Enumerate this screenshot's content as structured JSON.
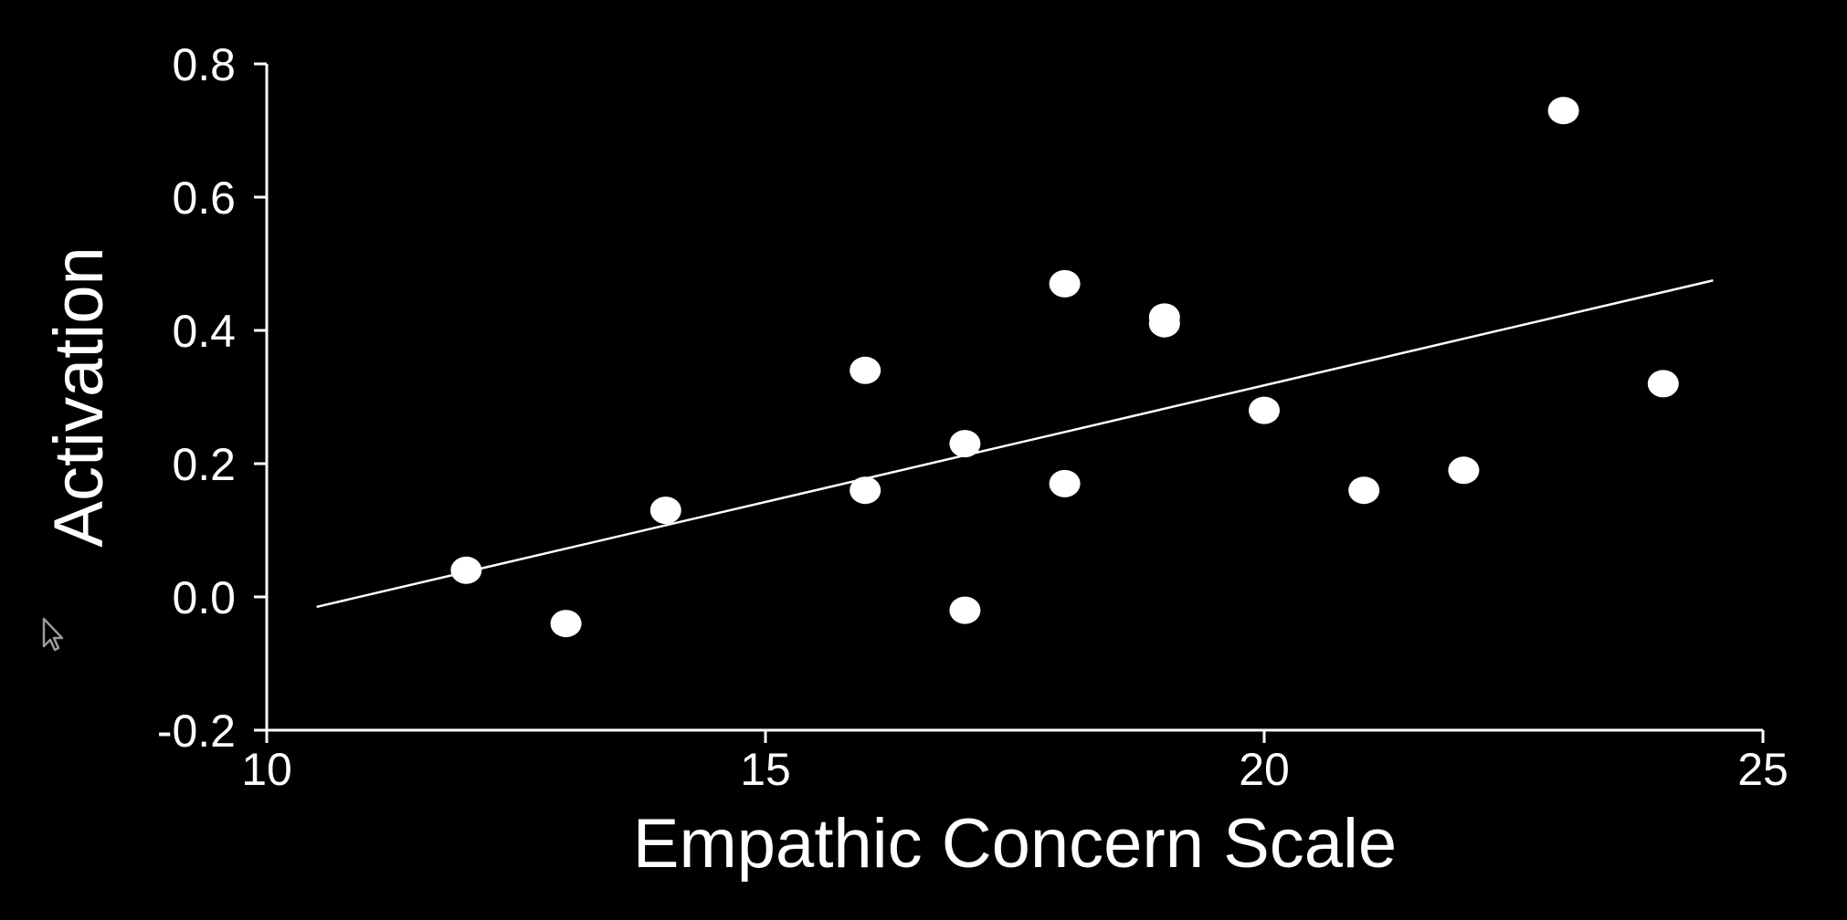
{
  "chart_data": {
    "type": "scatter",
    "xlabel": "Empathic Concern Scale",
    "ylabel": "Activation",
    "xlim": [
      10,
      25
    ],
    "ylim": [
      -0.2,
      0.8
    ],
    "x_ticks": [
      "10",
      "15",
      "20",
      "25"
    ],
    "y_ticks": [
      "0.8",
      "0.6",
      "0.4",
      "0.2",
      "0.0",
      "-0.2"
    ],
    "grid": false,
    "points": [
      {
        "x": 12,
        "y": 0.04
      },
      {
        "x": 13,
        "y": -0.04
      },
      {
        "x": 14,
        "y": 0.13
      },
      {
        "x": 16,
        "y": 0.34
      },
      {
        "x": 16,
        "y": 0.16
      },
      {
        "x": 17,
        "y": 0.23
      },
      {
        "x": 17,
        "y": -0.02
      },
      {
        "x": 18,
        "y": 0.47
      },
      {
        "x": 18,
        "y": 0.17
      },
      {
        "x": 19,
        "y": 0.42
      },
      {
        "x": 19,
        "y": 0.41
      },
      {
        "x": 20,
        "y": 0.28
      },
      {
        "x": 21,
        "y": 0.16
      },
      {
        "x": 22,
        "y": 0.19
      },
      {
        "x": 23,
        "y": 0.73
      },
      {
        "x": 24,
        "y": 0.32
      }
    ],
    "trend_line": {
      "x": [
        10.5,
        24.5
      ],
      "y": [
        -0.015,
        0.475
      ]
    },
    "colors": {
      "background": "#000000",
      "foreground": "#ffffff"
    }
  }
}
